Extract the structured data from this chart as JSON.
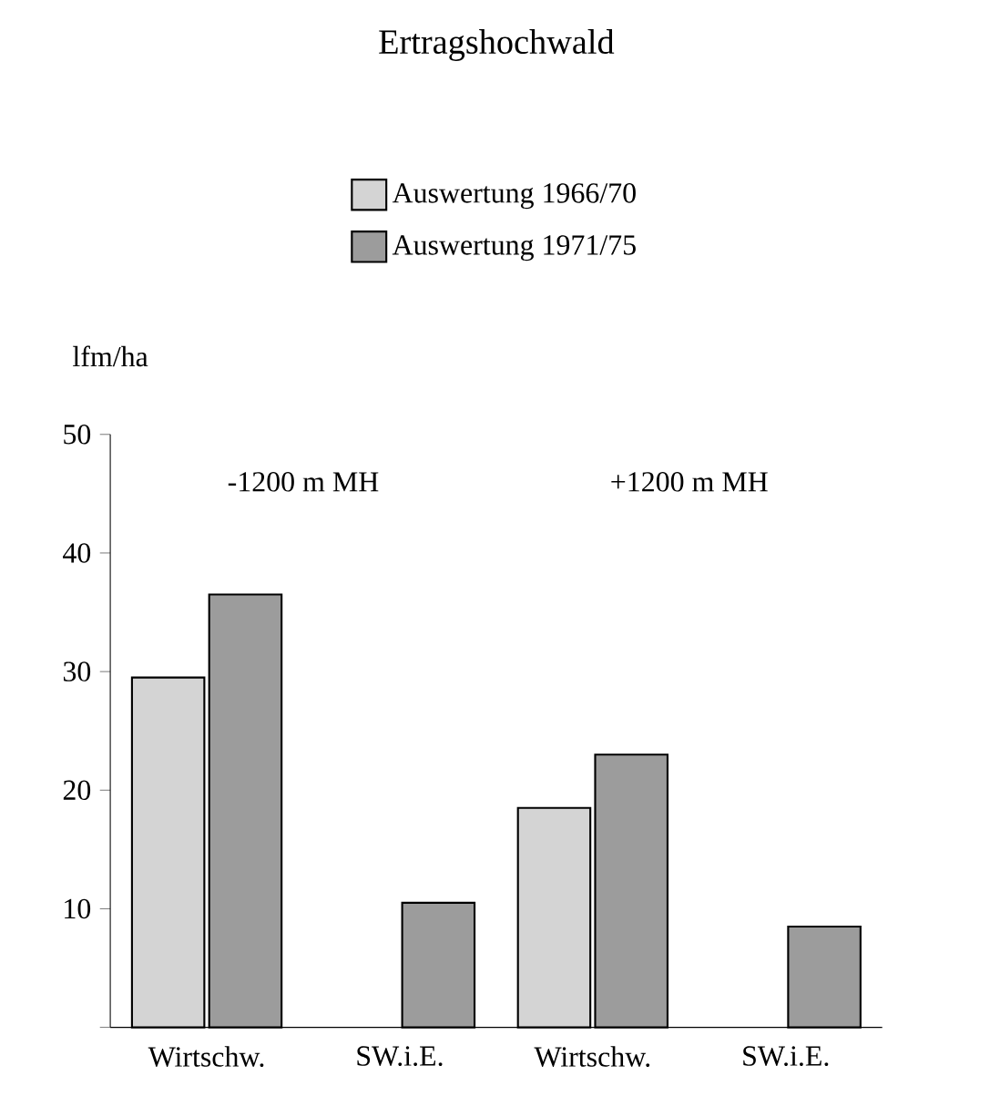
{
  "chart_data": {
    "type": "bar",
    "title": "Ertragshochwald",
    "ylabel": "lfm/ha",
    "categories": [
      "Wirtschw.",
      "SW.i.E.",
      "Wirtschw.",
      "SW.i.E."
    ],
    "series": [
      {
        "name": "Auswertung 1966/70",
        "color": "#d4d4d4",
        "values": [
          29.5,
          null,
          18.5,
          null
        ]
      },
      {
        "name": "Auswertung 1971/75",
        "color": "#9c9c9c",
        "values": [
          36.5,
          10.5,
          23,
          8.5
        ]
      }
    ],
    "ylim": [
      0,
      50
    ],
    "yticks": [
      {
        "value": 0,
        "label": null
      },
      10,
      20,
      30,
      40,
      50
    ],
    "annotations": [
      "-1200 m MH",
      "+1200 m MH"
    ],
    "grid": false,
    "legend": "top"
  }
}
